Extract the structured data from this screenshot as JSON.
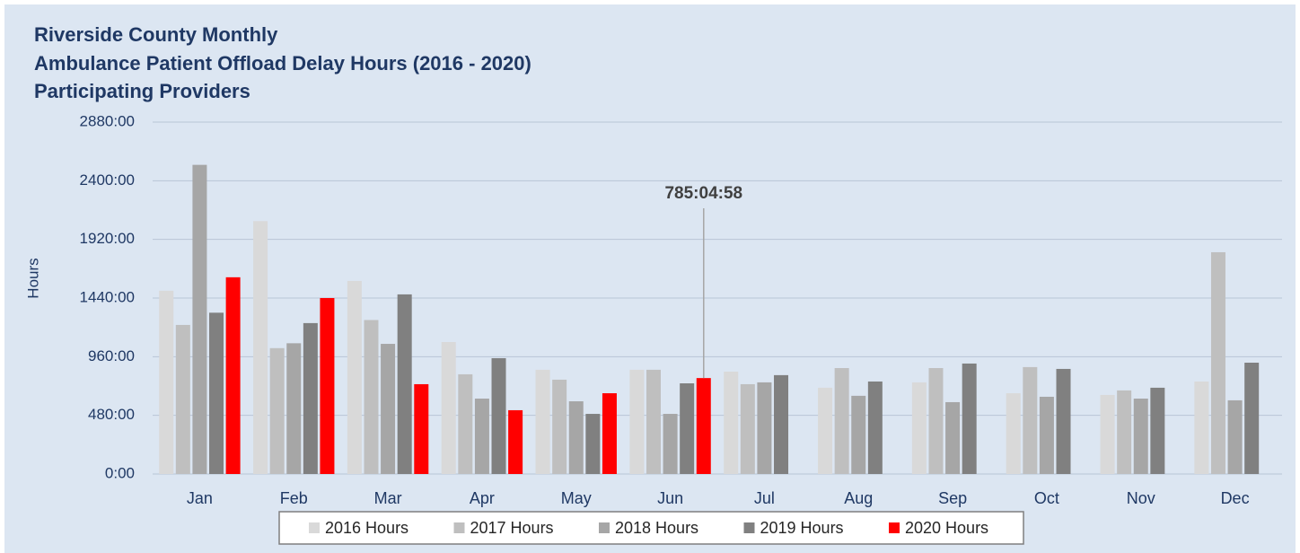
{
  "chart_data": {
    "type": "bar",
    "title": [
      "Riverside County Monthly",
      "Ambulance Patient Offload Delay Hours (2016 - 2020)",
      "Participating Providers"
    ],
    "y_label": "Hours",
    "categories": [
      "Jan",
      "Feb",
      "Mar",
      "Apr",
      "May",
      "Jun",
      "Jul",
      "Aug",
      "Sep",
      "Oct",
      "Nov",
      "Dec"
    ],
    "series": [
      {
        "name": "2016 Hours",
        "color": "#d9d9d9",
        "values": [
          1500,
          2070,
          1580,
          1080,
          853,
          853,
          838,
          706,
          750,
          661,
          647,
          757
        ]
      },
      {
        "name": "2017 Hours",
        "color": "#bfbfbf",
        "values": [
          1220,
          1030,
          1260,
          816,
          772,
          853,
          735,
          867,
          867,
          875,
          684,
          1815
        ]
      },
      {
        "name": "2018 Hours",
        "color": "#a6a6a6",
        "values": [
          2530,
          1070,
          1065,
          617,
          595,
          492,
          750,
          640,
          588,
          632,
          617,
          603
        ]
      },
      {
        "name": "2019 Hours",
        "color": "#808080",
        "values": [
          1320,
          1235,
          1470,
          948,
          492,
          742,
          809,
          757,
          904,
          860,
          706,
          911
        ]
      },
      {
        "name": "2020 Hours",
        "color": "#ff0000",
        "values": [
          1610,
          1440,
          735,
          522,
          661,
          785.08,
          null,
          null,
          null,
          null,
          null,
          null
        ],
        "value_labels": [
          null,
          null,
          null,
          null,
          null,
          "785:04:58",
          null,
          null,
          null,
          null,
          null,
          null
        ]
      }
    ],
    "ylim": [
      0,
      2880
    ],
    "yticks": [
      {
        "value": 0,
        "label": "0:00"
      },
      {
        "value": 480,
        "label": "480:00"
      },
      {
        "value": 960,
        "label": "960:00"
      },
      {
        "value": 1440,
        "label": "1440:00"
      },
      {
        "value": 1920,
        "label": "1920:00"
      },
      {
        "value": 2400,
        "label": "2400:00"
      },
      {
        "value": 2880,
        "label": "2880:00"
      }
    ],
    "grid": true,
    "legend": "bottom"
  }
}
